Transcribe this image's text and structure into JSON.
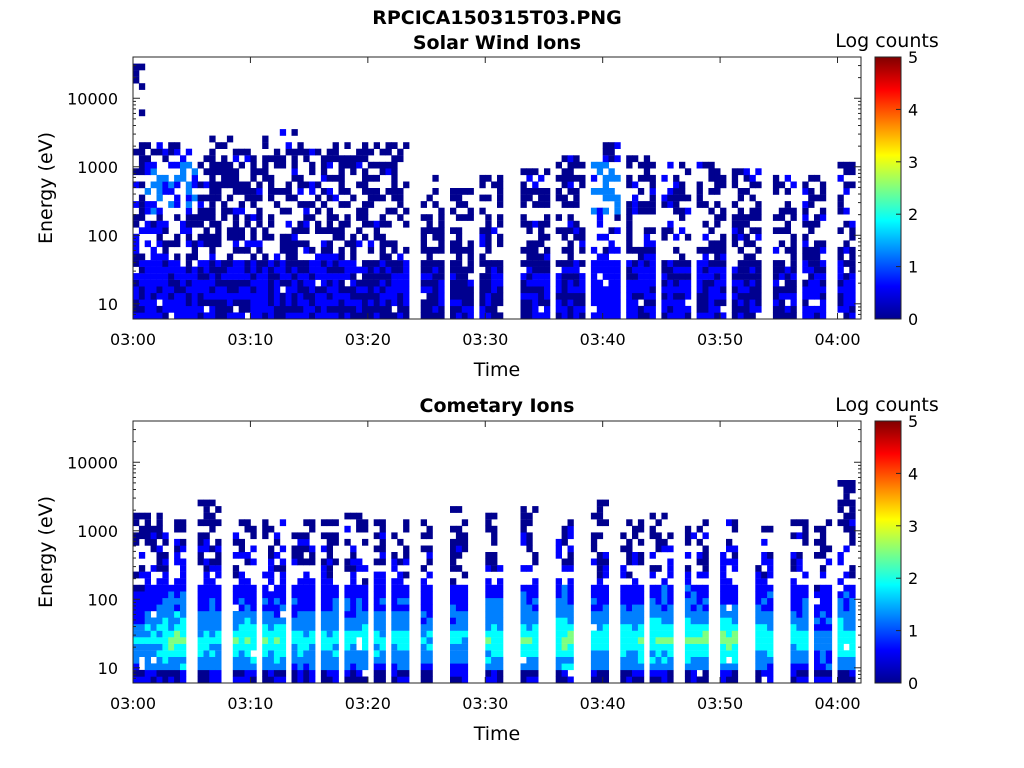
{
  "figure": {
    "title": "RPCICA150315T03.PNG"
  },
  "colormap": [
    "#00008f",
    "#0000ff",
    "#0080ff",
    "#00ffff",
    "#80ff80",
    "#ffff00",
    "#ff8000",
    "#ff0000",
    "#800000"
  ],
  "chart_data": [
    {
      "type": "heatmap",
      "title": "Solar Wind Ions",
      "xlabel": "Time",
      "ylabel": "Energy (eV)",
      "x_ticks": [
        "03:00",
        "03:10",
        "03:20",
        "03:30",
        "03:40",
        "03:50",
        "04:00"
      ],
      "x_tick_minutes": [
        0,
        10,
        20,
        30,
        40,
        50,
        60
      ],
      "xlim_minutes": [
        0,
        62
      ],
      "y_scale": "log",
      "y_ticks": [
        "10",
        "100",
        "1000",
        "10000"
      ],
      "y_tick_values": [
        10,
        100,
        1000,
        10000
      ],
      "ylim": [
        6,
        40000
      ],
      "colorbar": {
        "label": "Log counts",
        "ticks": [
          "0",
          "1",
          "2",
          "3",
          "4",
          "5"
        ],
        "range": [
          0,
          5
        ]
      },
      "profile": "solar",
      "bands": [
        {
          "t0": 0,
          "t1": 1,
          "e_lo": 6,
          "e_hi": 40000,
          "level": 0.6
        },
        {
          "t0": 1,
          "t1": 5.5,
          "e_lo": 6,
          "e_hi": 2500,
          "level": 0.8
        },
        {
          "t0": 5.5,
          "t1": 8.5,
          "e_lo": 6,
          "e_hi": 3000,
          "level": 0.6
        },
        {
          "t0": 8.5,
          "t1": 11,
          "e_lo": 6,
          "e_hi": 2000,
          "level": 0.7
        },
        {
          "t0": 11,
          "t1": 14,
          "e_lo": 6,
          "e_hi": 4000,
          "level": 0.6
        },
        {
          "t0": 14,
          "t1": 17,
          "e_lo": 6,
          "e_hi": 3000,
          "level": 0.7
        },
        {
          "t0": 17,
          "t1": 20,
          "e_lo": 6,
          "e_hi": 2500,
          "level": 0.6
        },
        {
          "t0": 20,
          "t1": 23.5,
          "e_lo": 6,
          "e_hi": 2500,
          "level": 0.6
        },
        {
          "t0": 24.5,
          "t1": 26.5,
          "e_lo": 6,
          "e_hi": 700,
          "level": 0.5
        },
        {
          "t0": 27,
          "t1": 29,
          "e_lo": 6,
          "e_hi": 500,
          "level": 0.5
        },
        {
          "t0": 29.5,
          "t1": 31.5,
          "e_lo": 6,
          "e_hi": 700,
          "level": 0.6
        },
        {
          "t0": 33,
          "t1": 35.5,
          "e_lo": 6,
          "e_hi": 1000,
          "level": 0.6
        },
        {
          "t0": 36,
          "t1": 38.5,
          "e_lo": 6,
          "e_hi": 1500,
          "level": 0.6
        },
        {
          "t0": 39,
          "t1": 41.5,
          "e_lo": 6,
          "e_hi": 2500,
          "level": 0.9
        },
        {
          "t0": 42,
          "t1": 44.5,
          "e_lo": 6,
          "e_hi": 1500,
          "level": 0.7
        },
        {
          "t0": 45,
          "t1": 47.5,
          "e_lo": 6,
          "e_hi": 1200,
          "level": 0.7
        },
        {
          "t0": 48,
          "t1": 50.5,
          "e_lo": 6,
          "e_hi": 1200,
          "level": 0.7
        },
        {
          "t0": 51,
          "t1": 53.5,
          "e_lo": 6,
          "e_hi": 1000,
          "level": 0.6
        },
        {
          "t0": 54.5,
          "t1": 56.5,
          "e_lo": 6,
          "e_hi": 800,
          "level": 0.6
        },
        {
          "t0": 57,
          "t1": 59,
          "e_lo": 6,
          "e_hi": 800,
          "level": 0.7
        },
        {
          "t0": 60,
          "t1": 61.5,
          "e_lo": 6,
          "e_hi": 1200,
          "level": 0.7
        }
      ]
    },
    {
      "type": "heatmap",
      "title": "Cometary Ions",
      "xlabel": "Time",
      "ylabel": "Energy (eV)",
      "x_ticks": [
        "03:00",
        "03:10",
        "03:20",
        "03:30",
        "03:40",
        "03:50",
        "04:00"
      ],
      "x_tick_minutes": [
        0,
        10,
        20,
        30,
        40,
        50,
        60
      ],
      "xlim_minutes": [
        0,
        62
      ],
      "y_scale": "log",
      "y_ticks": [
        "10",
        "100",
        "1000",
        "10000"
      ],
      "y_tick_values": [
        10,
        100,
        1000,
        10000
      ],
      "ylim": [
        6,
        40000
      ],
      "colorbar": {
        "label": "Log counts",
        "ticks": [
          "0",
          "1",
          "2",
          "3",
          "4",
          "5"
        ],
        "range": [
          0,
          5
        ]
      },
      "profile": "comet",
      "bands": [
        {
          "t0": 0,
          "t1": 1,
          "e_lo": 6,
          "e_hi": 2000,
          "level": 1.8
        },
        {
          "t0": 1,
          "t1": 2.5,
          "e_lo": 6,
          "e_hi": 2000,
          "level": 2.0
        },
        {
          "t0": 2.5,
          "t1": 4.5,
          "e_lo": 6,
          "e_hi": 1500,
          "level": 2.5
        },
        {
          "t0": 5.5,
          "t1": 7.5,
          "e_lo": 6,
          "e_hi": 3000,
          "level": 2.0
        },
        {
          "t0": 8.5,
          "t1": 10.5,
          "e_lo": 6,
          "e_hi": 1500,
          "level": 2.3
        },
        {
          "t0": 11,
          "t1": 13,
          "e_lo": 6,
          "e_hi": 1500,
          "level": 2.2
        },
        {
          "t0": 13.5,
          "t1": 15.5,
          "e_lo": 6,
          "e_hi": 1500,
          "level": 2.0
        },
        {
          "t0": 16,
          "t1": 17.5,
          "e_lo": 6,
          "e_hi": 1500,
          "level": 2.0
        },
        {
          "t0": 18,
          "t1": 20,
          "e_lo": 6,
          "e_hi": 2000,
          "level": 2.0
        },
        {
          "t0": 20.5,
          "t1": 21.5,
          "e_lo": 6,
          "e_hi": 1500,
          "level": 2.0
        },
        {
          "t0": 22,
          "t1": 23.5,
          "e_lo": 6,
          "e_hi": 1500,
          "level": 2.0
        },
        {
          "t0": 24.5,
          "t1": 25.5,
          "e_lo": 6,
          "e_hi": 2000,
          "level": 1.8
        },
        {
          "t0": 27,
          "t1": 28.5,
          "e_lo": 6,
          "e_hi": 2500,
          "level": 1.8
        },
        {
          "t0": 30,
          "t1": 31.5,
          "e_lo": 6,
          "e_hi": 2000,
          "level": 2.2
        },
        {
          "t0": 33,
          "t1": 34.5,
          "e_lo": 6,
          "e_hi": 2500,
          "level": 2.3
        },
        {
          "t0": 36,
          "t1": 37.5,
          "e_lo": 6,
          "e_hi": 1500,
          "level": 2.5
        },
        {
          "t0": 39,
          "t1": 40.5,
          "e_lo": 6,
          "e_hi": 3000,
          "level": 2.2
        },
        {
          "t0": 41.5,
          "t1": 43.5,
          "e_lo": 6,
          "e_hi": 1500,
          "level": 2.2
        },
        {
          "t0": 44,
          "t1": 46,
          "e_lo": 6,
          "e_hi": 2000,
          "level": 2.4
        },
        {
          "t0": 47,
          "t1": 49,
          "e_lo": 6,
          "e_hi": 1500,
          "level": 2.4
        },
        {
          "t0": 50,
          "t1": 51.5,
          "e_lo": 6,
          "e_hi": 2000,
          "level": 2.5
        },
        {
          "t0": 53,
          "t1": 54.5,
          "e_lo": 6,
          "e_hi": 1500,
          "level": 2.2
        },
        {
          "t0": 56,
          "t1": 57.5,
          "e_lo": 6,
          "e_hi": 1500,
          "level": 2.0
        },
        {
          "t0": 58,
          "t1": 59.5,
          "e_lo": 6,
          "e_hi": 1500,
          "level": 1.5
        },
        {
          "t0": 60,
          "t1": 61.5,
          "e_lo": 6,
          "e_hi": 5000,
          "level": 2.3
        }
      ]
    }
  ]
}
